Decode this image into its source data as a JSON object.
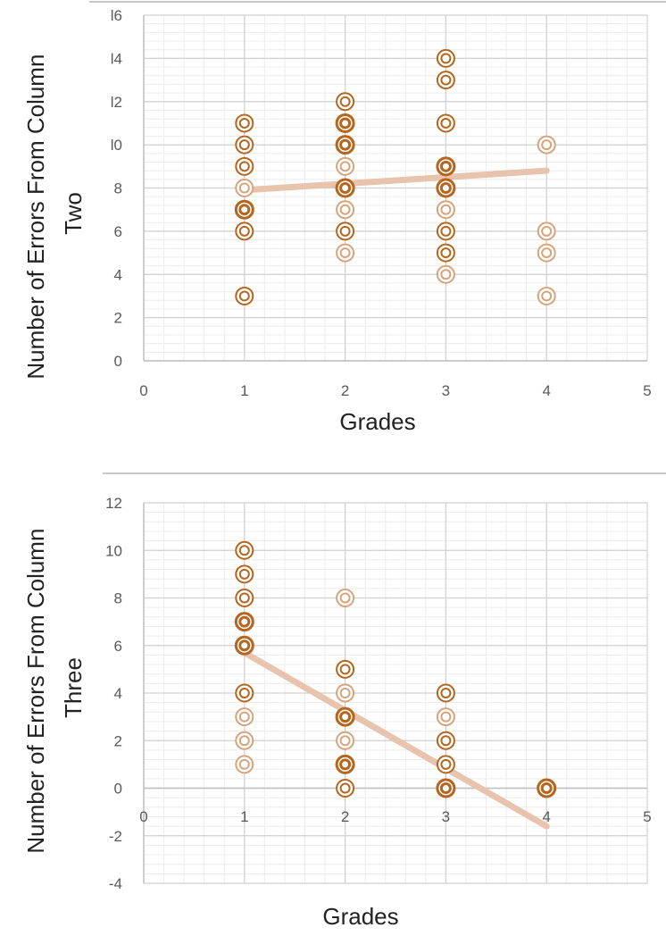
{
  "colors": {
    "marker_dark": "#B5651D",
    "marker_light": "#D7A37C",
    "trendline": "#E8C3AE",
    "grid_major": "#D0D0D0",
    "grid_minor": "#ECECEC",
    "separator": "#BFBFBF"
  },
  "chart_data": [
    {
      "type": "scatter",
      "title": "",
      "xlabel": "Grades",
      "ylabel_lines": [
        "Number of Errors From Column",
        "Two"
      ],
      "xlim": [
        0,
        5
      ],
      "ylim": [
        0,
        16
      ],
      "x_ticks": [
        0,
        1,
        2,
        3,
        4,
        5
      ],
      "y_ticks": [
        0,
        2,
        4,
        6,
        8,
        10,
        12,
        14,
        16
      ],
      "x_tick_labels": [
        "0",
        "1",
        "2",
        "3",
        "4",
        "5"
      ],
      "y_tick_labels": [
        "0",
        "2",
        "4",
        "6",
        "8",
        "l0",
        "l2",
        "l4",
        "l6"
      ],
      "grid": true,
      "trendline": {
        "x": [
          1,
          4
        ],
        "y": [
          7.9,
          8.8
        ]
      },
      "points": [
        {
          "x": 1,
          "y": 3,
          "count": 2
        },
        {
          "x": 1,
          "y": 6,
          "count": 2
        },
        {
          "x": 1,
          "y": 7,
          "count": 3
        },
        {
          "x": 1,
          "y": 8,
          "count": 1
        },
        {
          "x": 1,
          "y": 9,
          "count": 2
        },
        {
          "x": 1,
          "y": 10,
          "count": 2
        },
        {
          "x": 1,
          "y": 11,
          "count": 2
        },
        {
          "x": 2,
          "y": 5,
          "count": 1
        },
        {
          "x": 2,
          "y": 6,
          "count": 2
        },
        {
          "x": 2,
          "y": 7,
          "count": 1
        },
        {
          "x": 2,
          "y": 8,
          "count": 3
        },
        {
          "x": 2,
          "y": 9,
          "count": 1
        },
        {
          "x": 2,
          "y": 10,
          "count": 3
        },
        {
          "x": 2,
          "y": 11,
          "count": 3
        },
        {
          "x": 2,
          "y": 12,
          "count": 2
        },
        {
          "x": 3,
          "y": 4,
          "count": 1
        },
        {
          "x": 3,
          "y": 5,
          "count": 2
        },
        {
          "x": 3,
          "y": 6,
          "count": 2
        },
        {
          "x": 3,
          "y": 7,
          "count": 1
        },
        {
          "x": 3,
          "y": 8,
          "count": 3
        },
        {
          "x": 3,
          "y": 9,
          "count": 3
        },
        {
          "x": 3,
          "y": 11,
          "count": 2
        },
        {
          "x": 3,
          "y": 13,
          "count": 2
        },
        {
          "x": 3,
          "y": 14,
          "count": 2
        },
        {
          "x": 4,
          "y": 3,
          "count": 1
        },
        {
          "x": 4,
          "y": 5,
          "count": 1
        },
        {
          "x": 4,
          "y": 6,
          "count": 1
        },
        {
          "x": 4,
          "y": 10,
          "count": 1
        }
      ]
    },
    {
      "type": "scatter",
      "title": "",
      "xlabel": "Grades",
      "ylabel_lines": [
        "Number of Errors From Column",
        "Three"
      ],
      "xlim": [
        0,
        5
      ],
      "ylim": [
        -4,
        12
      ],
      "x_ticks": [
        0,
        1,
        2,
        3,
        4,
        5
      ],
      "y_ticks": [
        -4,
        -2,
        0,
        2,
        4,
        6,
        8,
        10,
        12
      ],
      "x_tick_labels": [
        "0",
        "1",
        "2",
        "3",
        "4",
        "5"
      ],
      "y_tick_labels": [
        "-4",
        "-2",
        "0",
        "2",
        "4",
        "6",
        "8",
        "10",
        "12"
      ],
      "grid": true,
      "trendline": {
        "x": [
          1,
          4
        ],
        "y": [
          5.7,
          -1.6
        ]
      },
      "points": [
        {
          "x": 1,
          "y": 1,
          "count": 1
        },
        {
          "x": 1,
          "y": 2,
          "count": 1
        },
        {
          "x": 1,
          "y": 3,
          "count": 1
        },
        {
          "x": 1,
          "y": 4,
          "count": 2
        },
        {
          "x": 1,
          "y": 6,
          "count": 3
        },
        {
          "x": 1,
          "y": 7,
          "count": 3
        },
        {
          "x": 1,
          "y": 8,
          "count": 2
        },
        {
          "x": 1,
          "y": 9,
          "count": 2
        },
        {
          "x": 1,
          "y": 10,
          "count": 2
        },
        {
          "x": 2,
          "y": 0,
          "count": 2
        },
        {
          "x": 2,
          "y": 1,
          "count": 3
        },
        {
          "x": 2,
          "y": 2,
          "count": 1
        },
        {
          "x": 2,
          "y": 3,
          "count": 3
        },
        {
          "x": 2,
          "y": 4,
          "count": 1
        },
        {
          "x": 2,
          "y": 5,
          "count": 2
        },
        {
          "x": 2,
          "y": 8,
          "count": 1
        },
        {
          "x": 3,
          "y": 0,
          "count": 3
        },
        {
          "x": 3,
          "y": 1,
          "count": 2
        },
        {
          "x": 3,
          "y": 2,
          "count": 2
        },
        {
          "x": 3,
          "y": 3,
          "count": 1
        },
        {
          "x": 3,
          "y": 4,
          "count": 2
        },
        {
          "x": 4,
          "y": 0,
          "count": 3
        }
      ]
    }
  ]
}
